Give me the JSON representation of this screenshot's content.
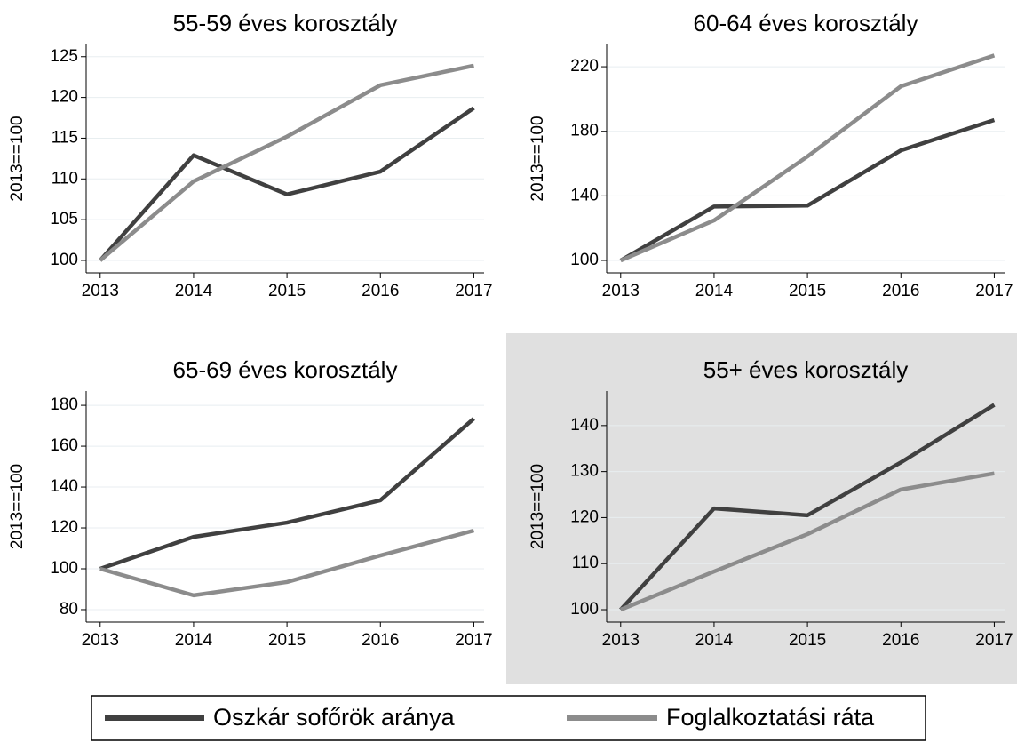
{
  "legend": [
    {
      "name": "Oszkár sofőrök aránya",
      "color": "#404040"
    },
    {
      "name": "Foglalkoztatási ráta",
      "color": "#8c8c8c"
    }
  ],
  "chart_data": [
    {
      "type": "line",
      "title": "55-59 éves korosztály",
      "y_label": "2013==100",
      "x": [
        2013,
        2014,
        2015,
        2016,
        2017
      ],
      "xlim": [
        2012.85,
        2017.11
      ],
      "xticks": [
        2013,
        2014,
        2015,
        2016,
        2017
      ],
      "ylim": [
        98.47,
        126.5
      ],
      "yticks": [
        100,
        105,
        110,
        115,
        120,
        125
      ],
      "grid": true,
      "series": [
        {
          "values": [
            100,
            112.9,
            108.1,
            110.9,
            118.7
          ]
        },
        {
          "values": [
            100,
            109.7,
            115.2,
            121.5,
            123.9
          ]
        }
      ]
    },
    {
      "type": "line",
      "title": "60-64 éves korosztály",
      "y_label": "2013==100",
      "x": [
        2013,
        2014,
        2015,
        2016,
        2017
      ],
      "xlim": [
        2012.85,
        2017.11
      ],
      "xticks": [
        2013,
        2014,
        2015,
        2016,
        2017
      ],
      "ylim": [
        92.3,
        233.8
      ],
      "yticks": [
        100,
        140,
        180,
        220
      ],
      "grid": true,
      "series": [
        {
          "values": [
            100,
            133.4,
            134,
            168.2,
            187
          ]
        },
        {
          "values": [
            100,
            124.8,
            164.4,
            207.9,
            227
          ]
        }
      ]
    },
    {
      "type": "line",
      "title": "65-69 éves korosztály",
      "y_label": "2013==100",
      "x": [
        2013,
        2014,
        2015,
        2016,
        2017
      ],
      "xlim": [
        2012.85,
        2017.11
      ],
      "xticks": [
        2013,
        2014,
        2015,
        2016,
        2017
      ],
      "ylim": [
        73.9,
        187
      ],
      "yticks": [
        80,
        100,
        120,
        140,
        160,
        180
      ],
      "grid": true,
      "series": [
        {
          "values": [
            100,
            115.6,
            122.6,
            133.5,
            173.5
          ]
        },
        {
          "values": [
            100,
            87,
            93.5,
            106.5,
            118.7
          ]
        }
      ]
    },
    {
      "type": "line",
      "title": "55+ éves korosztály",
      "y_label": "2013==100",
      "x": [
        2013,
        2014,
        2015,
        2016,
        2017
      ],
      "xlim": [
        2012.85,
        2017.11
      ],
      "xticks": [
        2013,
        2014,
        2015,
        2016,
        2017
      ],
      "ylim": [
        97.3,
        147.5
      ],
      "yticks": [
        100,
        110,
        120,
        130,
        140
      ],
      "grid": true,
      "series": [
        {
          "values": [
            100,
            122,
            120.5,
            132,
            144.5
          ]
        },
        {
          "values": [
            100,
            108.3,
            116.4,
            126.1,
            129.6
          ]
        }
      ]
    }
  ]
}
